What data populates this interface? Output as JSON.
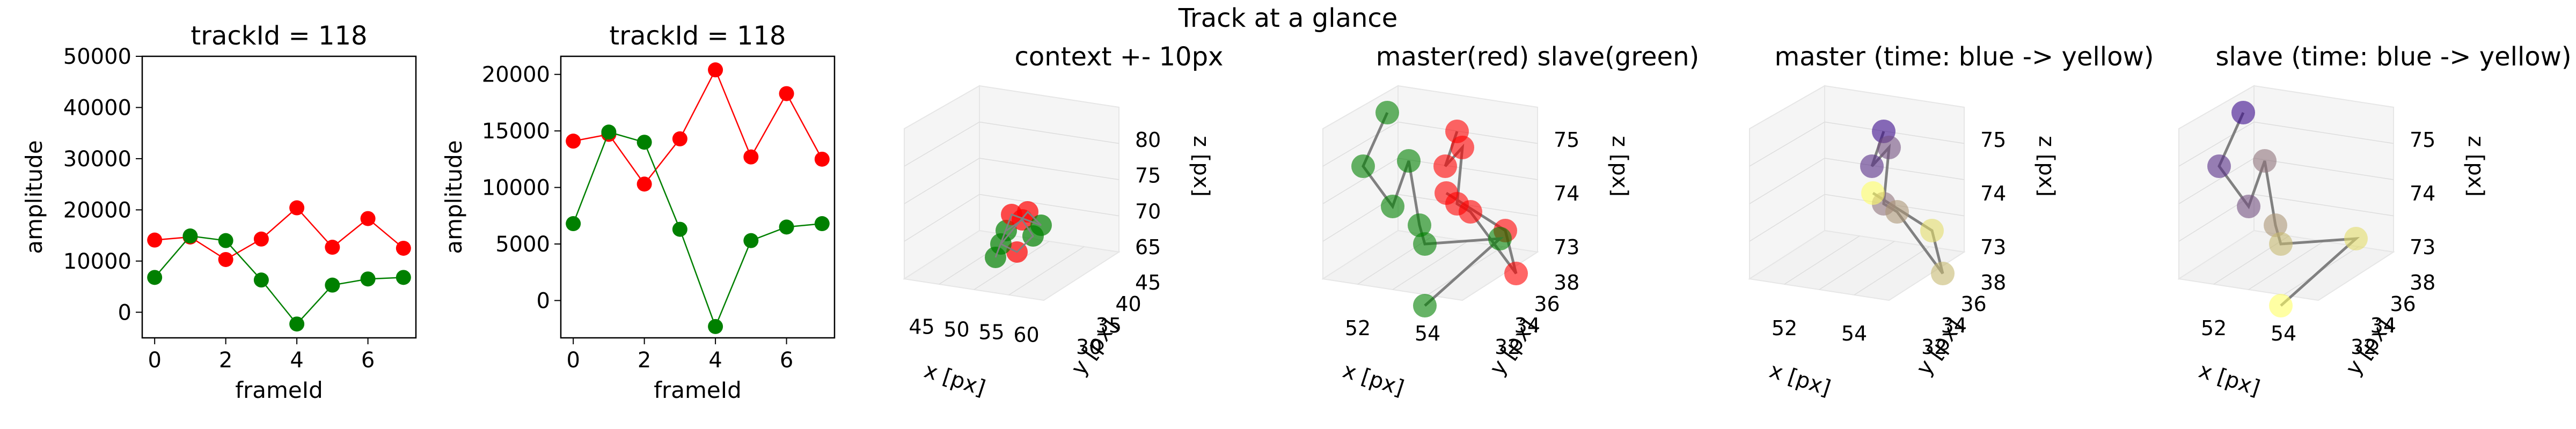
{
  "figure": {
    "suptitle": "Track at a glance"
  },
  "colors": {
    "master": "#ff0000",
    "slave": "#008000",
    "connector": "#808080",
    "time_start": "#3b0a8c",
    "time_end": "#ffff66"
  },
  "chart_data": [
    {
      "type": "line",
      "title": "trackId = 118",
      "xlabel": "frameId",
      "ylabel": "amplitude",
      "xlim": [
        -0.35,
        7.35
      ],
      "ylim": [
        -5000,
        50000
      ],
      "xticks": [
        "0",
        "2",
        "4",
        "6"
      ],
      "xtick_values": [
        0,
        2,
        4,
        6
      ],
      "yticks": [
        "0",
        "10000",
        "20000",
        "30000",
        "40000",
        "50000"
      ],
      "ytick_values": [
        0,
        10000,
        20000,
        30000,
        40000,
        50000
      ],
      "x": [
        0,
        1,
        2,
        3,
        4,
        5,
        6,
        7
      ],
      "series": [
        {
          "color": "#ff0000",
          "values": [
            14100,
            14700,
            10300,
            14300,
            20400,
            12700,
            18300,
            12500
          ]
        },
        {
          "color": "#008000",
          "values": [
            6800,
            14900,
            14000,
            6300,
            -2300,
            5300,
            6500,
            6800
          ]
        }
      ]
    },
    {
      "type": "line",
      "title": "trackId = 118",
      "xlabel": "frameId",
      "ylabel": "amplitude",
      "xlim": [
        -0.35,
        7.35
      ],
      "ylim": [
        -3300,
        21600
      ],
      "xticks": [
        "0",
        "2",
        "4",
        "6"
      ],
      "xtick_values": [
        0,
        2,
        4,
        6
      ],
      "yticks": [
        "0",
        "5000",
        "10000",
        "15000",
        "20000"
      ],
      "ytick_values": [
        0,
        5000,
        10000,
        15000,
        20000
      ],
      "x": [
        0,
        1,
        2,
        3,
        4,
        5,
        6,
        7
      ],
      "series": [
        {
          "color": "#ff0000",
          "values": [
            14100,
            14700,
            10300,
            14300,
            20400,
            12700,
            18300,
            12500
          ]
        },
        {
          "color": "#008000",
          "values": [
            6800,
            14900,
            14000,
            6300,
            -2300,
            5300,
            6500,
            6800
          ]
        }
      ]
    },
    {
      "type": "scatter",
      "title": "context +- 10px",
      "xlabel": "x [px]",
      "ylabel": "y [px]",
      "zlabel": "z [px]",
      "xticks": [
        "45",
        "50",
        "55",
        "60"
      ],
      "yticks": [
        "30",
        "35",
        "40",
        "45"
      ],
      "zticks": [
        "65",
        "70",
        "75",
        "80"
      ]
    },
    {
      "type": "scatter",
      "title": "master(red) slave(green)",
      "xlabel": "x [px]",
      "ylabel": "y [px]",
      "zlabel": "z [px]",
      "xticks": [
        "52",
        "54"
      ],
      "yticks": [
        "32",
        "34",
        "36",
        "38"
      ],
      "zticks": [
        "73",
        "74",
        "75"
      ]
    },
    {
      "type": "scatter",
      "title": "master (time: blue -> yellow)",
      "xlabel": "x [px]",
      "ylabel": "y [px]",
      "zlabel": "z [px]",
      "xticks": [
        "52",
        "54"
      ],
      "yticks": [
        "32",
        "34",
        "36",
        "38"
      ],
      "zticks": [
        "73",
        "74",
        "75"
      ]
    },
    {
      "type": "scatter",
      "title": "slave (time: blue -> yellow)",
      "xlabel": "x [px]",
      "ylabel": "y [px]",
      "zlabel": "z [px]",
      "xticks": [
        "52",
        "54"
      ],
      "yticks": [
        "32",
        "34",
        "36",
        "38"
      ],
      "zticks": [
        "73",
        "74",
        "75"
      ]
    }
  ]
}
